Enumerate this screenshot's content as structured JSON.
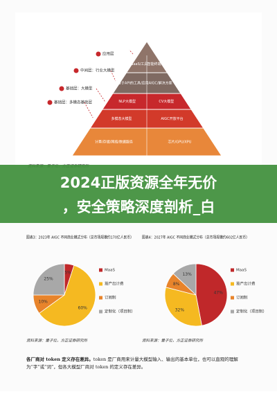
{
  "diagram": {
    "left_labels": [
      "应用层",
      "中间层：行业大模型",
      "基础层：大模型",
      "基础层：多模态基础层"
    ],
    "layers": [
      [
        "SaaS/工具",
        "智能终端"
      ],
      [
        "基于API的工具/应用",
        "AIGC/解决方案"
      ],
      [
        "NLP大模型",
        "CV大模型"
      ],
      [
        "多模态大模型",
        "AIGC开放平台"
      ],
      [
        "计算/存储/网络/数据服务",
        "芯片/GPU/XPU"
      ]
    ],
    "source": "资料来源：量子位，方正证券研究所"
  },
  "overlay": {
    "line1": "2024正版资源全年无价",
    "line2": "，安全策略深度剖析_白"
  },
  "charts": [
    {
      "type": "pie",
      "title": "图表3：2023年 AIGC 不同商业模式分布（总市场规模约170亿人民币）",
      "categories": [
        "MaaS",
        "按产出计费",
        "订阅制",
        "定制化（项目制）"
      ],
      "values": [
        5,
        60,
        10,
        25
      ],
      "value_labels": [
        "5%",
        "60%",
        "10%",
        "25%"
      ],
      "colors": [
        "#c0282a",
        "#f5b921",
        "#e8842b",
        "#a8a8a8"
      ],
      "source": "资料来源：量子位，方正证券研究所"
    },
    {
      "type": "pie",
      "title": "图表4：2027年 AIGC 不同商业模式分布（总市场规模约602亿人民币）",
      "categories": [
        "MaaS",
        "按产出计费",
        "订阅制",
        "定制化（项目制）"
      ],
      "values": [
        47,
        32,
        8,
        13
      ],
      "value_labels": [
        "47%",
        "32%",
        "8%",
        "13%"
      ],
      "colors": [
        "#c0282a",
        "#f5b921",
        "#e8842b",
        "#a8a8a8"
      ],
      "source": "资料来源：量子位，方正证券研究所"
    }
  ],
  "footer": {
    "bold": "各厂商对 token 定义存在差异。",
    "text": "token 是厂商用来计量大模型输入、输出的基本单位，也可以直观的理解为“字”或“词”，但各大模型厂商对 token 的定义存在差异。"
  }
}
